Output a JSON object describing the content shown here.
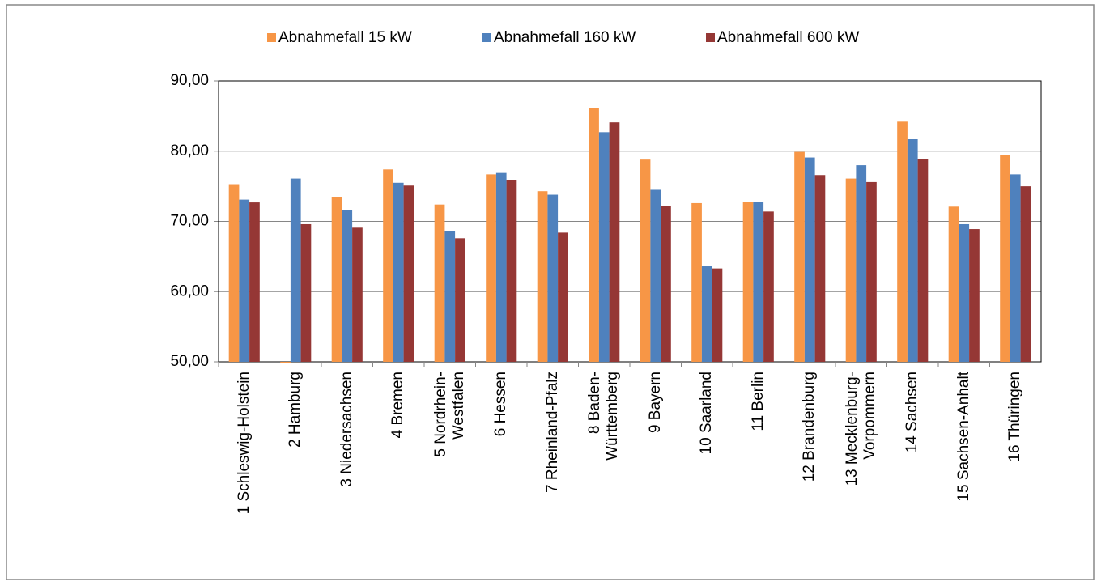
{
  "chart_data": {
    "type": "bar",
    "categories": [
      "1 Schleswig-Holstein",
      "2 Hamburg",
      "3 Niedersachsen",
      "4 Bremen",
      "5 Nordrhein-\nWestfalen",
      "6 Hessen",
      "7 Rheinland-Pfalz",
      "8 Baden-\nWürttemberg",
      "9 Bayern",
      "10 Saarland",
      "11 Berlin",
      "12 Brandenburg",
      "13 Mecklenburg-\nVorpommern",
      "14 Sachsen",
      "15 Sachsen-Anhalt",
      "16 Thüringen"
    ],
    "series": [
      {
        "name": "Abnahmefall 15 kW",
        "color": "#f79646",
        "values": [
          75.3,
          49.8,
          73.4,
          77.4,
          72.4,
          76.7,
          74.3,
          86.1,
          78.8,
          72.6,
          72.8,
          79.9,
          76.1,
          84.2,
          72.1,
          79.4
        ]
      },
      {
        "name": "Abnahmefall 160 kW",
        "color": "#4f81bd",
        "values": [
          73.1,
          76.1,
          71.6,
          75.5,
          68.6,
          76.9,
          73.8,
          82.7,
          74.5,
          63.6,
          72.8,
          79.1,
          78.0,
          81.7,
          69.6,
          76.7
        ]
      },
      {
        "name": "Abnahmefall 600 kW",
        "color": "#953735",
        "values": [
          72.7,
          69.6,
          69.1,
          75.1,
          67.6,
          75.9,
          68.4,
          84.1,
          72.2,
          63.3,
          71.4,
          76.6,
          75.6,
          78.9,
          68.9,
          75.0
        ]
      }
    ],
    "ylim": [
      50,
      90
    ],
    "yticks": [
      {
        "value": 50,
        "label": "50,00"
      },
      {
        "value": 60,
        "label": "60,00"
      },
      {
        "value": 70,
        "label": "70,00"
      },
      {
        "value": 80,
        "label": "80,00"
      },
      {
        "value": 90,
        "label": "90,00"
      }
    ],
    "grid": true,
    "legend": "top"
  }
}
